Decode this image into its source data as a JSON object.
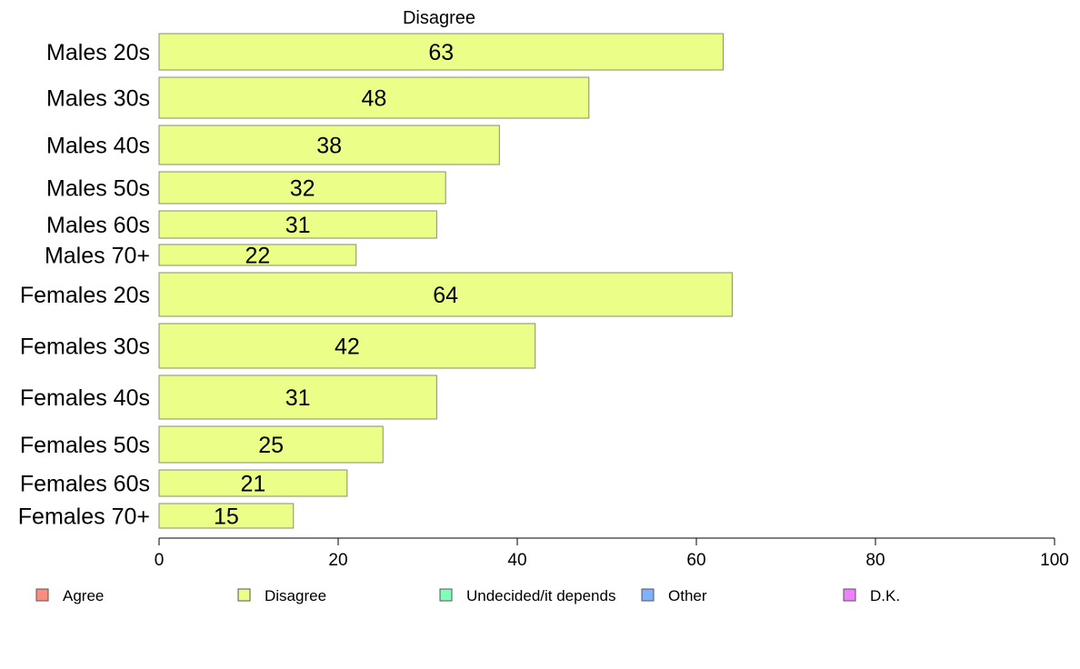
{
  "chart_data": {
    "type": "bar",
    "orientation": "horizontal",
    "title": "Disagree",
    "categories": [
      "Males 20s",
      "Males 30s",
      "Males 40s",
      "Males 50s",
      "Males 60s",
      "Males 70+",
      "Females 20s",
      "Females 30s",
      "Females 40s",
      "Females 50s",
      "Females 60s",
      "Females 70+"
    ],
    "values": [
      63,
      48,
      38,
      32,
      31,
      22,
      64,
      42,
      31,
      25,
      21,
      15
    ],
    "xlim": [
      0,
      100
    ],
    "xticks": [
      0,
      20,
      40,
      60,
      80,
      100
    ],
    "grid": false,
    "bar_color": "#ebff88",
    "legend": [
      {
        "label": "Agree",
        "color": "#ff8a80"
      },
      {
        "label": "Disagree",
        "color": "#ebff88"
      },
      {
        "label": "Undecided/it depends",
        "color": "#80ffb8"
      },
      {
        "label": "Other",
        "color": "#80b0ff"
      },
      {
        "label": "D.K.",
        "color": "#ee80ff"
      }
    ],
    "legend_position": "bottom"
  }
}
